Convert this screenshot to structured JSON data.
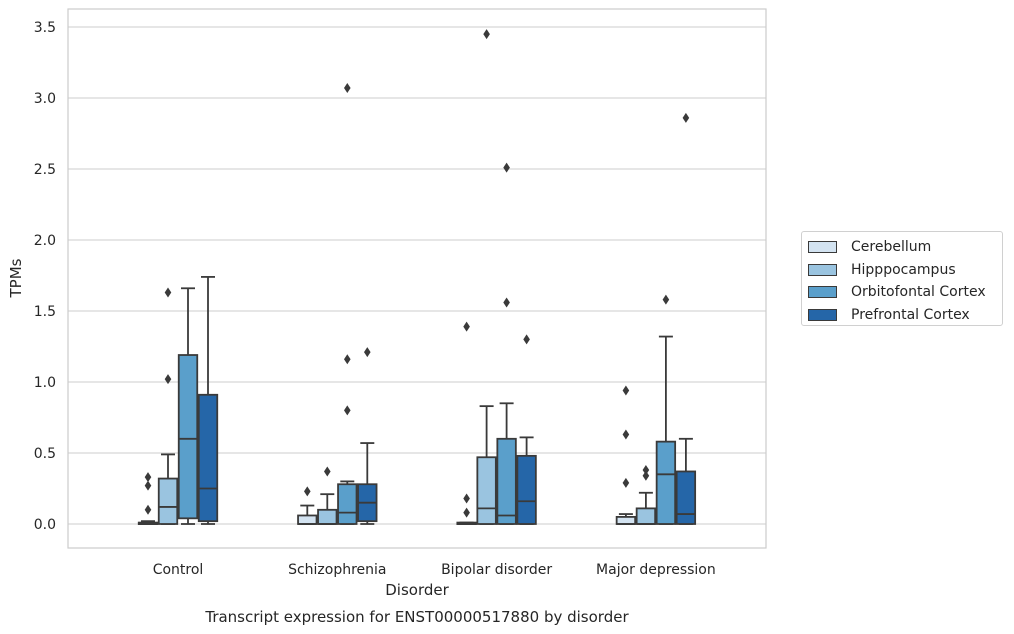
{
  "chart_data": {
    "type": "box",
    "title": "",
    "caption": "Transcript expression for ENST00000517880 by disorder",
    "xlabel": "Disorder",
    "ylabel": "TPMs",
    "ylim": [
      -0.17,
      3.62
    ],
    "yticks": [
      "0.0",
      "0.5",
      "1.0",
      "1.5",
      "2.0",
      "2.5",
      "3.0",
      "3.5"
    ],
    "grid": "horizontal",
    "legend_position": "right",
    "categories": [
      "Control",
      "Schizophrenia",
      "Bipolar disorder",
      "Major depression"
    ],
    "series": [
      {
        "name": "Cerebellum",
        "color": "#d3e3f1",
        "boxes": [
          {
            "q1": 0.0,
            "median": 0.0,
            "q3": 0.01,
            "whislo": 0.0,
            "whishi": 0.02,
            "fliers": [
              0.1,
              0.27,
              0.33
            ]
          },
          {
            "q1": 0.0,
            "median": 0.0,
            "q3": 0.06,
            "whislo": 0.0,
            "whishi": 0.13,
            "fliers": [
              0.23
            ]
          },
          {
            "q1": 0.0,
            "median": 0.0,
            "q3": 0.01,
            "whislo": 0.0,
            "whishi": 0.01,
            "fliers": [
              0.08,
              0.18,
              1.39
            ]
          },
          {
            "q1": 0.0,
            "median": 0.0,
            "q3": 0.05,
            "whislo": 0.0,
            "whishi": 0.07,
            "fliers": [
              0.29,
              0.63,
              0.94
            ]
          }
        ]
      },
      {
        "name": "Hipppocampus",
        "color": "#9ac4e0",
        "boxes": [
          {
            "q1": 0.0,
            "median": 0.12,
            "q3": 0.32,
            "whislo": 0.0,
            "whishi": 0.49,
            "fliers": [
              1.02,
              1.63
            ]
          },
          {
            "q1": 0.0,
            "median": 0.0,
            "q3": 0.1,
            "whislo": 0.0,
            "whishi": 0.21,
            "fliers": [
              0.37
            ]
          },
          {
            "q1": 0.0,
            "median": 0.11,
            "q3": 0.47,
            "whislo": 0.0,
            "whishi": 0.83,
            "fliers": [
              3.45
            ]
          },
          {
            "q1": 0.0,
            "median": 0.0,
            "q3": 0.11,
            "whislo": 0.0,
            "whishi": 0.22,
            "fliers": [
              0.34,
              0.38
            ]
          }
        ]
      },
      {
        "name": "Orbitofontal Cortex",
        "color": "#5a9fcb",
        "boxes": [
          {
            "q1": 0.04,
            "median": 0.6,
            "q3": 1.19,
            "whislo": 0.0,
            "whishi": 1.66,
            "fliers": []
          },
          {
            "q1": 0.0,
            "median": 0.08,
            "q3": 0.28,
            "whislo": 0.0,
            "whishi": 0.3,
            "fliers": [
              0.8,
              1.16,
              3.07
            ]
          },
          {
            "q1": 0.0,
            "median": 0.06,
            "q3": 0.6,
            "whislo": 0.0,
            "whishi": 0.85,
            "fliers": [
              1.56,
              2.51
            ]
          },
          {
            "q1": 0.0,
            "median": 0.35,
            "q3": 0.58,
            "whislo": 0.0,
            "whishi": 1.32,
            "fliers": [
              1.58
            ]
          }
        ]
      },
      {
        "name": "Prefrontal Cortex",
        "color": "#2566a8",
        "boxes": [
          {
            "q1": 0.02,
            "median": 0.25,
            "q3": 0.91,
            "whislo": 0.0,
            "whishi": 1.74,
            "fliers": []
          },
          {
            "q1": 0.02,
            "median": 0.15,
            "q3": 0.28,
            "whislo": 0.0,
            "whishi": 0.57,
            "fliers": [
              1.21
            ]
          },
          {
            "q1": 0.0,
            "median": 0.16,
            "q3": 0.48,
            "whislo": 0.0,
            "whishi": 0.61,
            "fliers": [
              1.3
            ]
          },
          {
            "q1": 0.0,
            "median": 0.07,
            "q3": 0.37,
            "whislo": 0.0,
            "whishi": 0.6,
            "fliers": [
              2.86
            ]
          }
        ]
      }
    ]
  }
}
